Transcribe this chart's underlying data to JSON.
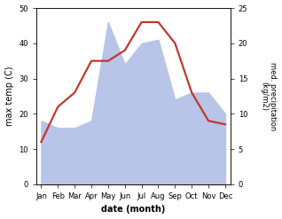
{
  "months": [
    "Jan",
    "Feb",
    "Mar",
    "Apr",
    "May",
    "Jun",
    "Jul",
    "Aug",
    "Sep",
    "Oct",
    "Nov",
    "Dec"
  ],
  "temperature": [
    12,
    22,
    26,
    35,
    35,
    38,
    46,
    46,
    40,
    26,
    18,
    17
  ],
  "precipitation": [
    9,
    8,
    8,
    9,
    23,
    17,
    20,
    20.5,
    12,
    13,
    13,
    10
  ],
  "temp_ylim": [
    0,
    50
  ],
  "precip_ylim": [
    0,
    25
  ],
  "temp_color": "#c0392b",
  "precip_fill_color": "#b8c4e8",
  "xlabel": "date (month)",
  "ylabel_left": "max temp (C)",
  "ylabel_right": "med. precipitation\n(kg/m2)",
  "bg_color": "#ffffff",
  "temp_linewidth": 1.6,
  "fig_width": 3.18,
  "fig_height": 2.47,
  "dpi": 100
}
